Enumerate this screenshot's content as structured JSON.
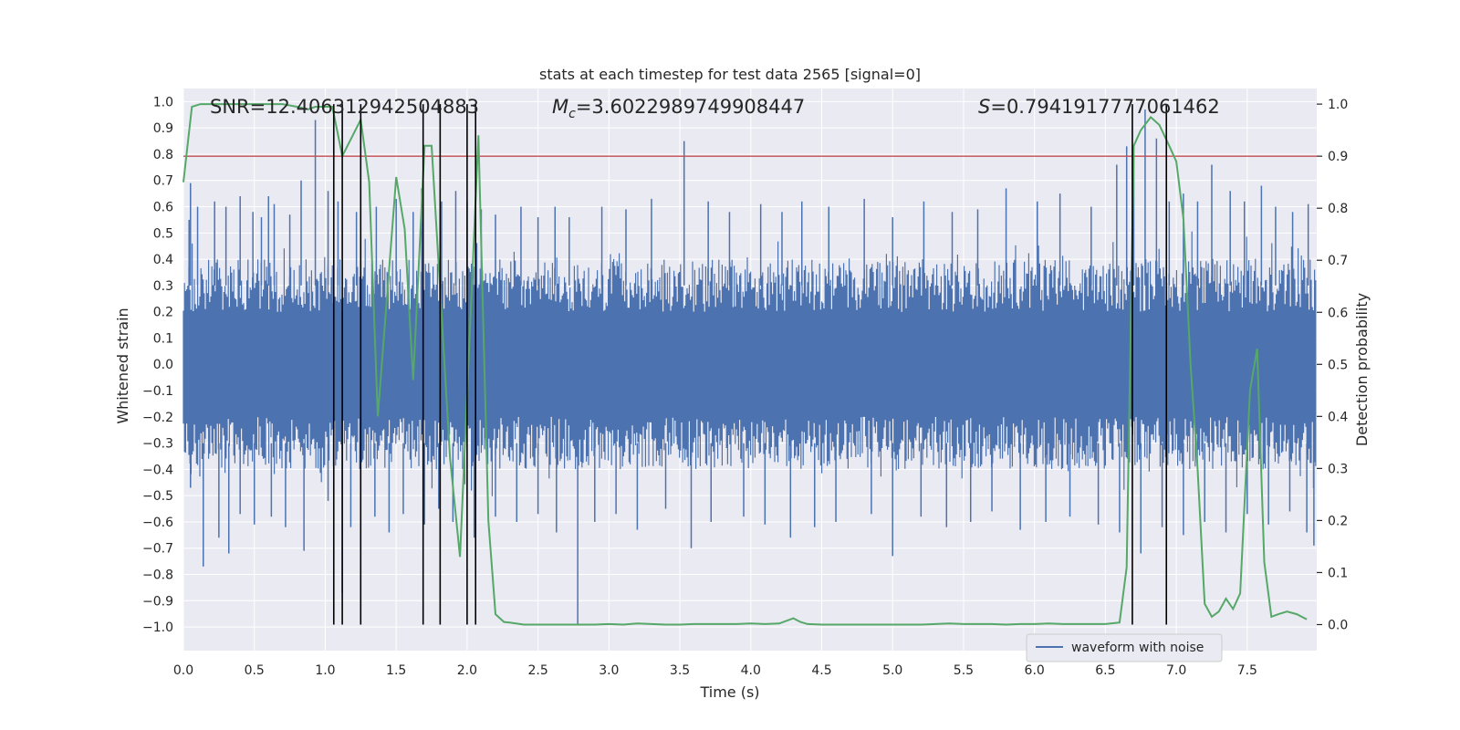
{
  "chart_data": {
    "type": "line",
    "title": "stats at each timestep for test data 2565 [signal=0]",
    "xlabel": "Time (s)",
    "ylabel": "Whitened strain",
    "y2label": "Detection probability",
    "xlim": [
      0.0,
      7.99
    ],
    "ylim": [
      -1.09,
      1.05
    ],
    "y2lim": [
      -0.05,
      1.03
    ],
    "x_ticks": [
      0.0,
      0.5,
      1.0,
      1.5,
      2.0,
      2.5,
      3.0,
      3.5,
      4.0,
      4.5,
      5.0,
      5.5,
      6.0,
      6.5,
      7.0,
      7.5
    ],
    "x_tick_labels": [
      "0.0",
      "0.5",
      "1.0",
      "1.5",
      "2.0",
      "2.5",
      "3.0",
      "3.5",
      "4.0",
      "4.5",
      "5.0",
      "5.5",
      "6.0",
      "6.5",
      "7.0",
      "7.5"
    ],
    "y_ticks": [
      1.0,
      0.9,
      0.8,
      0.7,
      0.6,
      0.5,
      0.4,
      0.3,
      0.2,
      0.1,
      0.0,
      -0.1,
      -0.2,
      -0.3,
      -0.4,
      -0.5,
      -0.6,
      -0.7,
      -0.8,
      -0.9,
      -1.0
    ],
    "y_tick_labels": [
      "1.0",
      "0.9",
      "0.8",
      "0.7",
      "0.6",
      "0.5",
      "0.4",
      "0.3",
      "0.2",
      "0.1",
      "0.0",
      "−0.1",
      "−0.2",
      "−0.3",
      "−0.4",
      "−0.5",
      "−0.6",
      "−0.7",
      "−0.8",
      "−0.9",
      "−1.0"
    ],
    "y2_ticks": [
      1.0,
      0.9,
      0.8,
      0.7,
      0.6,
      0.5,
      0.4,
      0.3,
      0.2,
      0.1,
      0.0
    ],
    "y2_tick_labels": [
      "1.0",
      "0.9",
      "0.8",
      "0.7",
      "0.6",
      "0.5",
      "0.4",
      "0.3",
      "0.2",
      "0.1",
      "0.0"
    ],
    "annotations": {
      "snr": "SNR=12.406312942504883",
      "mc_symbol": "M",
      "mc_subscript": "c",
      "mc_value": "=3.6022989749908447",
      "s_symbol": "S",
      "s_value": "=0.7941917777061462"
    },
    "series": [
      {
        "name": "waveform with noise",
        "axis": "left",
        "color": "#4c72b0",
        "style": "noisy strain, envelope approx ±0.4 with spikes",
        "spikes_up": [
          [
            0.04,
            0.55
          ],
          [
            0.05,
            0.69
          ],
          [
            0.1,
            0.6
          ],
          [
            0.22,
            0.62
          ],
          [
            0.3,
            0.6
          ],
          [
            0.4,
            0.64
          ],
          [
            0.49,
            0.58
          ],
          [
            0.55,
            0.56
          ],
          [
            0.6,
            0.64
          ],
          [
            0.64,
            0.61
          ],
          [
            0.75,
            0.57
          ],
          [
            0.83,
            0.7
          ],
          [
            0.93,
            0.93
          ],
          [
            1.02,
            0.66
          ],
          [
            1.09,
            0.62
          ],
          [
            1.22,
            0.58
          ],
          [
            1.36,
            0.6
          ],
          [
            1.5,
            0.63
          ],
          [
            1.62,
            0.58
          ],
          [
            1.68,
            0.67
          ],
          [
            1.82,
            0.62
          ],
          [
            1.92,
            0.66
          ],
          [
            2.0,
            0.62
          ],
          [
            2.1,
            0.59
          ],
          [
            2.2,
            0.57
          ],
          [
            2.38,
            0.6
          ],
          [
            2.5,
            0.56
          ],
          [
            2.62,
            0.6
          ],
          [
            2.72,
            0.56
          ],
          [
            2.95,
            0.6
          ],
          [
            3.12,
            0.59
          ],
          [
            3.3,
            0.63
          ],
          [
            3.53,
            0.85
          ],
          [
            3.7,
            0.62
          ],
          [
            3.85,
            0.58
          ],
          [
            4.07,
            0.61
          ],
          [
            4.22,
            0.58
          ],
          [
            4.36,
            0.62
          ],
          [
            4.55,
            0.6
          ],
          [
            4.8,
            0.63
          ],
          [
            5.0,
            0.56
          ],
          [
            5.22,
            0.62
          ],
          [
            5.42,
            0.58
          ],
          [
            5.6,
            0.59
          ],
          [
            5.8,
            0.67
          ],
          [
            6.02,
            0.62
          ],
          [
            6.18,
            0.65
          ],
          [
            6.4,
            0.6
          ],
          [
            6.58,
            0.76
          ],
          [
            6.65,
            0.83
          ],
          [
            6.7,
            0.8
          ],
          [
            6.78,
            0.97
          ],
          [
            6.86,
            0.86
          ],
          [
            6.95,
            0.62
          ],
          [
            7.05,
            0.65
          ],
          [
            7.15,
            0.62
          ],
          [
            7.25,
            0.76
          ],
          [
            7.38,
            0.66
          ],
          [
            7.48,
            0.62
          ],
          [
            7.6,
            0.68
          ],
          [
            7.7,
            0.6
          ],
          [
            7.82,
            0.58
          ],
          [
            7.93,
            0.61
          ]
        ],
        "spikes_down": [
          [
            0.05,
            -0.47
          ],
          [
            0.14,
            -0.77
          ],
          [
            0.25,
            -0.66
          ],
          [
            0.32,
            -0.72
          ],
          [
            0.4,
            -0.57
          ],
          [
            0.5,
            -0.61
          ],
          [
            0.62,
            -0.58
          ],
          [
            0.72,
            -0.62
          ],
          [
            0.85,
            -0.71
          ],
          [
            1.02,
            -0.52
          ],
          [
            1.12,
            -0.87
          ],
          [
            1.18,
            -0.62
          ],
          [
            1.35,
            -0.58
          ],
          [
            1.45,
            -0.64
          ],
          [
            1.55,
            -0.57
          ],
          [
            1.7,
            -0.61
          ],
          [
            1.8,
            -0.55
          ],
          [
            1.9,
            -0.6
          ],
          [
            2.05,
            -0.66
          ],
          [
            2.2,
            -0.58
          ],
          [
            2.35,
            -0.6
          ],
          [
            2.5,
            -0.57
          ],
          [
            2.63,
            -0.64
          ],
          [
            2.78,
            -0.99
          ],
          [
            2.9,
            -0.6
          ],
          [
            3.05,
            -0.57
          ],
          [
            3.2,
            -0.63
          ],
          [
            3.4,
            -0.55
          ],
          [
            3.58,
            -0.7
          ],
          [
            3.72,
            -0.6
          ],
          [
            3.95,
            -0.58
          ],
          [
            4.1,
            -0.61
          ],
          [
            4.28,
            -0.66
          ],
          [
            4.45,
            -0.62
          ],
          [
            4.6,
            -0.6
          ],
          [
            4.85,
            -0.57
          ],
          [
            5.0,
            -0.73
          ],
          [
            5.2,
            -0.58
          ],
          [
            5.38,
            -0.62
          ],
          [
            5.55,
            -0.6
          ],
          [
            5.7,
            -0.56
          ],
          [
            5.9,
            -0.63
          ],
          [
            6.08,
            -0.6
          ],
          [
            6.25,
            -0.58
          ],
          [
            6.45,
            -0.61
          ],
          [
            6.6,
            -0.64
          ],
          [
            6.75,
            -0.72
          ],
          [
            6.9,
            -0.62
          ],
          [
            7.05,
            -0.65
          ],
          [
            7.2,
            -0.6
          ],
          [
            7.35,
            -0.64
          ],
          [
            7.5,
            -0.57
          ],
          [
            7.65,
            -0.61
          ],
          [
            7.8,
            -0.56
          ],
          [
            7.92,
            -0.64
          ],
          [
            7.97,
            -0.69
          ]
        ]
      },
      {
        "name": "",
        "axis": "right",
        "color": "#55a868",
        "x": [
          0.0,
          0.06,
          0.12,
          0.2,
          0.3,
          0.4,
          0.5,
          0.6,
          0.7,
          0.8,
          0.88,
          0.93,
          0.98,
          1.05,
          1.12,
          1.25,
          1.31,
          1.37,
          1.5,
          1.56,
          1.62,
          1.7,
          1.75,
          1.88,
          1.95,
          2.08,
          2.15,
          2.2,
          2.26,
          2.3,
          2.4,
          2.5,
          2.6,
          2.7,
          2.8,
          2.9,
          3.0,
          3.1,
          3.2,
          3.3,
          3.4,
          3.5,
          3.6,
          3.7,
          3.8,
          3.9,
          4.0,
          4.1,
          4.2,
          4.3,
          4.35,
          4.4,
          4.5,
          4.6,
          4.7,
          4.8,
          4.9,
          5.0,
          5.1,
          5.2,
          5.3,
          5.4,
          5.5,
          5.6,
          5.7,
          5.8,
          5.9,
          6.0,
          6.1,
          6.2,
          6.3,
          6.4,
          6.5,
          6.6,
          6.65,
          6.7,
          6.75,
          6.82,
          6.88,
          6.95,
          7.0,
          7.05,
          7.1,
          7.15,
          7.2,
          7.25,
          7.3,
          7.35,
          7.4,
          7.45,
          7.52,
          7.57,
          7.62,
          7.67,
          7.72,
          7.78,
          7.85,
          7.92
        ],
        "values": [
          0.85,
          0.995,
          1.0,
          1.0,
          1.0,
          1.0,
          1.0,
          1.0,
          1.0,
          0.995,
          0.99,
          0.995,
          0.995,
          0.995,
          0.9,
          0.97,
          0.85,
          0.4,
          0.86,
          0.76,
          0.47,
          0.92,
          0.92,
          0.32,
          0.13,
          0.94,
          0.2,
          0.02,
          0.005,
          0.004,
          0.0,
          0.0,
          0.0,
          0.0,
          0.0,
          0.0,
          0.001,
          0.0,
          0.002,
          0.001,
          0.0,
          0.0,
          0.001,
          0.001,
          0.001,
          0.001,
          0.002,
          0.001,
          0.002,
          0.012,
          0.005,
          0.001,
          0.0,
          0.0,
          0.0,
          0.0,
          0.0,
          0.0,
          0.0,
          0.0,
          0.001,
          0.002,
          0.001,
          0.001,
          0.001,
          0.0,
          0.001,
          0.001,
          0.002,
          0.001,
          0.001,
          0.001,
          0.001,
          0.004,
          0.11,
          0.92,
          0.95,
          0.975,
          0.96,
          0.92,
          0.89,
          0.78,
          0.5,
          0.3,
          0.04,
          0.015,
          0.025,
          0.05,
          0.03,
          0.06,
          0.45,
          0.53,
          0.12,
          0.015,
          0.02,
          0.025,
          0.02,
          0.01
        ]
      }
    ],
    "threshold_line": {
      "value": 0.9,
      "axis": "right",
      "color": "#c44e52"
    },
    "vertical_lines": {
      "x": [
        1.06,
        1.12,
        1.25,
        1.69,
        1.81,
        2.0,
        2.06,
        6.69,
        6.93
      ],
      "color": "#000000"
    },
    "legend": {
      "position": "lower-right",
      "entries": [
        "waveform with noise"
      ]
    },
    "grid": true,
    "background": "#eaeaf2"
  }
}
